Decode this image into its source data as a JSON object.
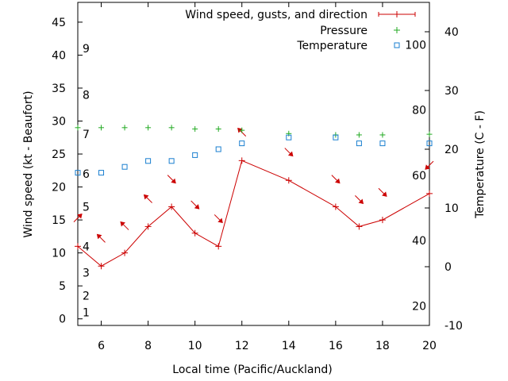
{
  "chart_data": {
    "type": "line",
    "xlabel": "Local time (Pacific/Auckland)",
    "ylabel": "Wind speed (kt - Beaufort)",
    "y2label": "Temperature (C - F)",
    "xlim": [
      5,
      20
    ],
    "ylim": [
      -1,
      48
    ],
    "y2lim": [
      -10,
      45
    ],
    "x_ticks": [
      6,
      8,
      10,
      12,
      14,
      16,
      18,
      20
    ],
    "y_ticks": [
      0,
      5,
      10,
      15,
      20,
      25,
      30,
      35,
      40,
      45
    ],
    "y2_ticks": [
      -10,
      0,
      10,
      20,
      30,
      40
    ],
    "fahrenheit_labels": [
      20,
      40,
      60,
      80,
      100
    ],
    "beaufort_labels": [
      1,
      2,
      3,
      4,
      5,
      6,
      7,
      8,
      9
    ],
    "grid": false,
    "legend_position": "top-right",
    "series": [
      {
        "name": "Wind speed, gusts, and direction",
        "color": "#cc0000",
        "marker": "plus",
        "x": [
          5,
          6,
          7,
          8,
          9,
          10,
          11,
          12,
          14,
          16,
          17,
          18,
          20
        ],
        "values": [
          11,
          8,
          10,
          14,
          17,
          13,
          11,
          24,
          21,
          17,
          14,
          15,
          19
        ],
        "gusts": [
          15.3,
          12.2,
          14.1,
          18.2,
          21.2,
          17.3,
          15.2,
          28.3,
          25.3,
          21.2,
          18.1,
          19.2,
          23.3
        ],
        "gust_arrow_directions": [
          "from-northeast",
          "from-northwest",
          "from-northwest",
          "from-northwest",
          "from-southeast",
          "from-southeast",
          "from-southeast",
          "from-northwest",
          "from-southeast",
          "from-southeast",
          "from-southeast",
          "from-southeast",
          "from-southwest"
        ]
      },
      {
        "name": "Pressure",
        "color": "#22aa22",
        "marker": "plus",
        "x": [
          5,
          6,
          7,
          8,
          9,
          10,
          11,
          12,
          14,
          16,
          17,
          18,
          20
        ],
        "values": [
          29,
          29,
          29,
          29,
          29,
          28.8,
          28.8,
          28.6,
          28.1,
          27.9,
          27.9,
          27.9,
          28
        ]
      },
      {
        "name": "Temperature",
        "color": "#1a7fd0",
        "marker": "square",
        "axis": "right",
        "x": [
          5,
          6,
          7,
          8,
          9,
          10,
          11,
          12,
          14,
          16,
          17,
          18,
          20
        ],
        "values": [
          16,
          16,
          17,
          18,
          18,
          19,
          20,
          21,
          22,
          22,
          21,
          21,
          21
        ]
      }
    ]
  }
}
